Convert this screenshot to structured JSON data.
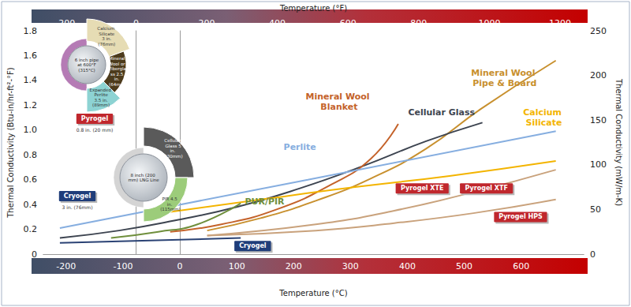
{
  "chart_data": {
    "type": "line",
    "x_label": "Temperature (°C)",
    "x2_label": "Temperature (°F)",
    "y_label": "Thermal Conductivity (Btu-in/hr-ft²-°F)",
    "y2_label": "Thermal Conductivity (mW/m-K)",
    "xlim": [
      -240,
      710
    ],
    "xticks": [
      -200,
      -100,
      0,
      100,
      200,
      300,
      400,
      500,
      600
    ],
    "x2lim": [
      -262,
      1267
    ],
    "x2ticks": [
      -200,
      0,
      200,
      400,
      600,
      800,
      1000,
      1200
    ],
    "ylim": [
      0,
      1.8
    ],
    "yticks": [
      0,
      0.2,
      0.4,
      0.6,
      0.8,
      {
        "value": 1,
        "label": "1.0"
      },
      1.2,
      1.4,
      1.6,
      1.8
    ],
    "y2lim": [
      0,
      250
    ],
    "y2ticks": [
      0,
      50,
      100,
      150,
      200,
      250
    ],
    "grid": false,
    "series": [
      {
        "name": "Mineral Wool Pipe & Board",
        "color": "#c8902e",
        "x": [
          48,
          142,
          239,
          336,
          433,
          529,
          661
        ],
        "values": [
          0.19,
          0.29,
          0.43,
          0.61,
          0.85,
          1.17,
          1.56
        ],
        "label_at": [
          571,
          1.42
        ]
      },
      {
        "name": "Cellular Glass",
        "color": "#3d4450",
        "x": [
          -211,
          -107,
          -10,
          100,
          211,
          322,
          433,
          532
        ],
        "values": [
          0.13,
          0.19,
          0.27,
          0.38,
          0.53,
          0.71,
          0.91,
          1.06
        ],
        "label_at": [
          460,
          1.14
        ]
      },
      {
        "name": "Mineral Wool Blanket",
        "color": "#c4622a",
        "x": [
          -17,
          73,
          170,
          266,
          336,
          384
        ],
        "values": [
          0.18,
          0.24,
          0.36,
          0.56,
          0.77,
          1.05
        ],
        "label_at": [
          280,
          1.23
        ]
      },
      {
        "name": "Perlite",
        "color": "#86aee0",
        "x": [
          -211,
          225,
          661
        ],
        "values": [
          0.21,
          0.6,
          0.99
        ],
        "label_at": [
          211,
          0.86
        ]
      },
      {
        "name": "Calcium Silicate",
        "color": "#f3b400",
        "x": [
          -17,
          142,
          308,
          474,
          661
        ],
        "values": [
          0.34,
          0.44,
          0.54,
          0.63,
          0.75
        ],
        "label_at": [
          640,
          1.1
        ]
      },
      {
        "name": "PUR/PIR",
        "color": "#6f8f3c",
        "x": [
          -121,
          -38,
          31,
          107
        ],
        "values": [
          0.13,
          0.18,
          0.24,
          0.41
        ],
        "label_at": [
          149,
          0.42
        ]
      },
      {
        "name": "Cryogel",
        "color": "#2a4274",
        "x": [
          -211,
          107
        ],
        "values": [
          0.09,
          0.13
        ]
      },
      {
        "name": "Pyrogel XTE",
        "color": "#c9a27c",
        "x": [
          48,
          239,
          377,
          516,
          661
        ],
        "values": [
          0.15,
          0.24,
          0.35,
          0.5,
          0.68
        ]
      },
      {
        "name": "Pyrogel HPS",
        "color": "#c9a27c",
        "x": [
          48,
          239,
          377,
          516,
          661
        ],
        "values": [
          0.15,
          0.19,
          0.25,
          0.33,
          0.44
        ]
      }
    ],
    "annotations": [
      {
        "text": "Pyrogel XTE",
        "x": 426,
        "y": 0.52,
        "color": "#c0272d"
      },
      {
        "text": "Pyrogel XTF",
        "x": 539,
        "y": 0.52,
        "color": "#c0272d"
      },
      {
        "text": "Pyrogel HPS",
        "x": 599,
        "y": 0.29,
        "color": "#c0272d"
      },
      {
        "text": "Cryogel",
        "x": 128,
        "y": 0.055,
        "color": "#1f3d7a"
      }
    ],
    "insets": [
      {
        "center_text": "6 inch pipe at 600°F (315°C)",
        "segments": [
          {
            "text": "Calcium Silicate 3 in. (76mm)",
            "color": "#e6dcb4"
          },
          {
            "text": "Mineral Wool or Fiberglass 2.5 in. (64mm)",
            "color": "#4d3b1c"
          },
          {
            "text": "Expanded Perlite 3.5 in. (89mm)",
            "color": "#8dd3d3"
          }
        ],
        "ring_color": "#b57bb5",
        "badge": {
          "text": "Pyrogel",
          "color": "#c0272d"
        },
        "note": "0.8 in. (20 mm)"
      },
      {
        "center_text": "8 inch (200 mm) LNG Line",
        "segments": [
          {
            "text": "Cellular Glass 5 in. (130mm)",
            "color": "#5a5a5a"
          },
          {
            "text": "PIR 4.5 in. (115mm)",
            "color": "#9ccc7a"
          }
        ],
        "ring_color": "#d4d4d4",
        "badge": {
          "text": "Cryogel",
          "color": "#1f3d7a"
        },
        "note": "3 in. (76mm)"
      }
    ]
  }
}
